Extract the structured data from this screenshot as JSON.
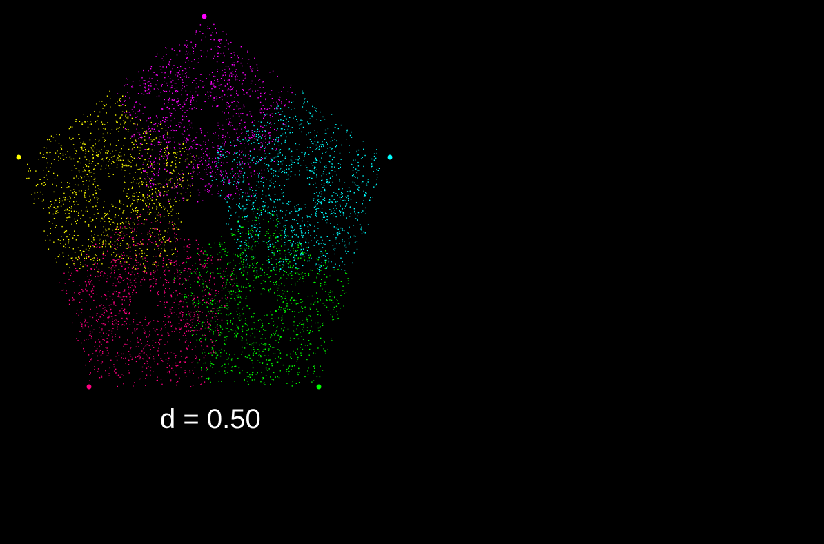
{
  "label": "d = 0.50",
  "vertices": [
    {
      "name": "top",
      "color": "#ff00ff"
    },
    {
      "name": "right",
      "color": "#00ffff"
    },
    {
      "name": "bottom-right",
      "color": "#00ff00"
    },
    {
      "name": "bottom-left",
      "color": "#ff0080"
    },
    {
      "name": "left",
      "color": "#ffff00"
    }
  ],
  "background_color": "#000000",
  "text_color": "#ffffff"
}
